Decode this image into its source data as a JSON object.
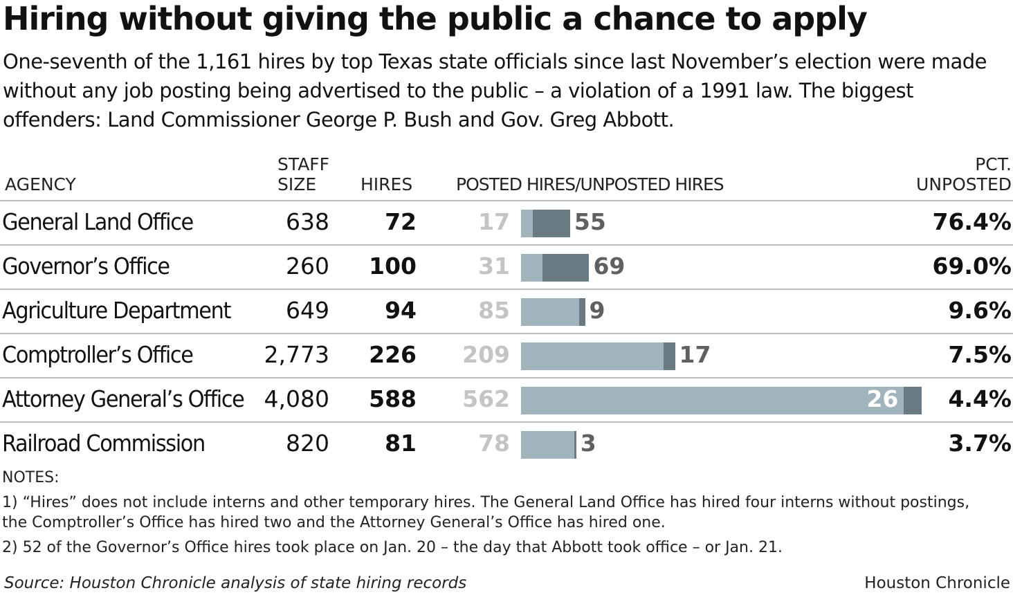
{
  "title": "Hiring without giving the public a chance to apply",
  "subtitle": "One-seventh of the 1,161 hires by top Texas state officials since last November’s election were made without any job posting being advertised to the public – a violation of a 1991 law. The biggest offenders: Land Commissioner George P. Bush and Gov. Greg Abbott.",
  "headers": {
    "agency": "AGENCY",
    "staff_1": "STAFF",
    "staff_2": "SIZE",
    "hires": "HIRES",
    "bars": "POSTED HIRES/UNPOSTED HIRES",
    "pct_1": "PCT.",
    "pct_2": "UNPOSTED"
  },
  "colors": {
    "posted": "#a1b3bd",
    "unposted": "#6a7a83",
    "posted_label": "#c4c4c4",
    "unposted_label": "#606060"
  },
  "chart_data": {
    "type": "table",
    "series": [
      {
        "name": "POSTED HIRES"
      },
      {
        "name": "UNPOSTED HIRES"
      }
    ],
    "rows": [
      {
        "agency": "General Land Office",
        "staff": "638",
        "hires": "72",
        "posted": 17,
        "unposted": 55,
        "pct": "76.4%"
      },
      {
        "agency": "Governor’s Office",
        "staff": "260",
        "hires": "100",
        "posted": 31,
        "unposted": 69,
        "pct": "69.0%"
      },
      {
        "agency": "Agriculture Department",
        "staff": "649",
        "hires": "94",
        "posted": 85,
        "unposted": 9,
        "pct": "9.6%"
      },
      {
        "agency": "Comptroller’s Office",
        "staff": "2,773",
        "hires": "226",
        "posted": 209,
        "unposted": 17,
        "pct": "7.5%"
      },
      {
        "agency": "Attorney General’s Office",
        "staff": "4,080",
        "hires": "588",
        "posted": 562,
        "unposted": 26,
        "pct": "4.4%"
      },
      {
        "agency": "Railroad Commission",
        "staff": "820",
        "hires": "81",
        "posted": 78,
        "unposted": 3,
        "pct": "3.7%"
      }
    ]
  },
  "notes": {
    "heading": "NOTES:",
    "n1": "1) “Hires” does not include interns and other temporary hires. The General Land Office has hired four interns without postings, the Comptroller’s Office has hired two and the Attorney General’s Office has hired one.",
    "n2": "2) 52 of the Governor’s Office hires took place on Jan. 20 – the day that Abbott took office – or Jan. 21."
  },
  "source": "Source: Houston Chronicle analysis of state hiring records",
  "credit": "Houston Chronicle"
}
